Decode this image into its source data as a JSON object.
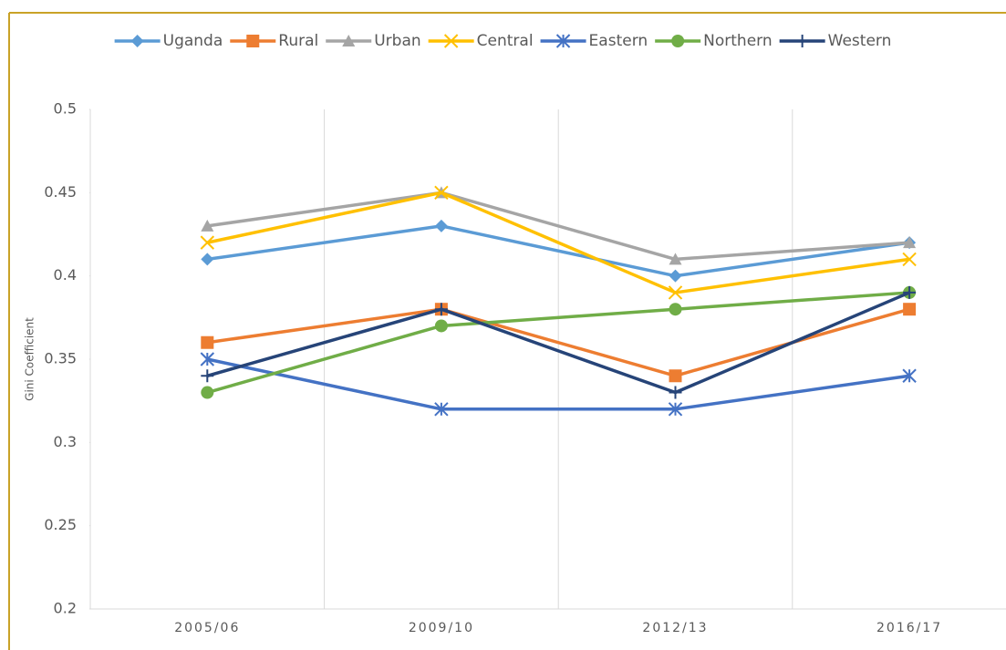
{
  "chart_data": {
    "type": "line",
    "y_label": "Gini Coefficient",
    "categories": [
      "2005/06",
      "2009/10",
      "2012/13",
      "2016/17"
    ],
    "series": [
      {
        "name": "Uganda",
        "color": "#5b9bd5",
        "marker": "diamond",
        "values": [
          0.41,
          0.43,
          0.4,
          0.42
        ]
      },
      {
        "name": "Rural",
        "color": "#ed7d31",
        "marker": "square",
        "values": [
          0.36,
          0.38,
          0.34,
          0.38
        ]
      },
      {
        "name": "Urban",
        "color": "#a5a5a5",
        "marker": "triangle",
        "values": [
          0.43,
          0.45,
          0.41,
          0.42
        ]
      },
      {
        "name": "Central",
        "color": "#ffc000",
        "marker": "x",
        "values": [
          0.42,
          0.45,
          0.39,
          0.41
        ]
      },
      {
        "name": "Eastern",
        "color": "#4472c4",
        "marker": "star",
        "values": [
          0.35,
          0.32,
          0.32,
          0.34
        ]
      },
      {
        "name": "Northern",
        "color": "#70ad47",
        "marker": "circle",
        "values": [
          0.33,
          0.37,
          0.38,
          0.39
        ]
      },
      {
        "name": "Western",
        "color": "#264478",
        "marker": "plus",
        "values": [
          0.34,
          0.38,
          0.33,
          0.39
        ]
      }
    ],
    "ylim": [
      0.2,
      0.5
    ],
    "yticks": [
      0.2,
      0.25,
      0.3,
      0.35,
      0.4,
      0.45,
      0.5
    ],
    "legend": "top"
  }
}
